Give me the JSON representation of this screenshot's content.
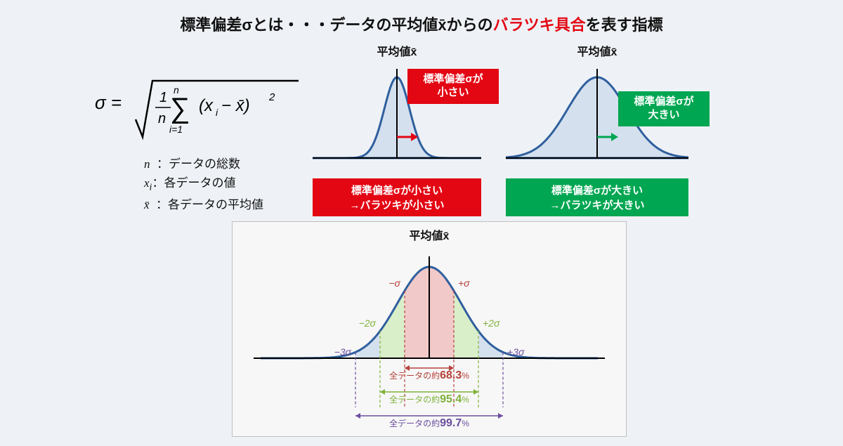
{
  "title_pre": "標準偏差σとは・・・データの平均値x̄からの",
  "title_red": "バラツキ具合",
  "title_post": "を表す指標",
  "formula": {
    "sigma_eq": "σ =",
    "frac_top": "1",
    "frac_bot": "n",
    "sum_top": "n",
    "sum_bot": "i=1",
    "termL": "(x",
    "term_sub": "i",
    "termR": " − x̄)",
    "exp": "2"
  },
  "legend": {
    "n": "n",
    "n_txt": "：データの総数",
    "xi": "x",
    "xi_sub": "i",
    "xi_txt": "：各データの値",
    "xbar": "x̄",
    "xbar_txt": "：各データの平均値"
  },
  "chart_small": {
    "title": "平均値x̄",
    "box_l1": "標準偏差σが",
    "box_l2": "小さい",
    "cap_l1": "標準偏差σが小さい",
    "cap_l2": "→バラツキが小さい",
    "curve_color": "#2f5f9e",
    "fill_color": "#d4e0ee",
    "axis": "#000",
    "sigma": 18
  },
  "chart_big": {
    "title": "平均値x̄",
    "box_l1": "標準偏差σが",
    "box_l2": "大きい",
    "cap_l1": "標準偏差σが大きい",
    "cap_l2": "→バラツキが大きい",
    "curve_color": "#2f5f9e",
    "fill_color": "#d4e0ee",
    "axis": "#000",
    "sigma": 42
  },
  "bottom": {
    "title": "平均値x̄",
    "curve_color": "#2f5f9e",
    "fill_blue": "#d4e0ee",
    "fill_red": "#f2c9c9",
    "fill_green": "#d9efc9",
    "sigma_labels": {
      "m1": "−σ",
      "p1": "+σ",
      "m2": "−2σ",
      "p2": "+2σ",
      "m3": "−3σ",
      "p3": "+3σ"
    },
    "range1_pre": "全データの約",
    "range1_val": "68.3",
    "range1_pct": "%",
    "range2_pre": "全データの約",
    "range2_val": "95.4",
    "range2_pct": "%",
    "range3_pre": "全データの約",
    "range3_val": "99.7",
    "range3_pct": "%",
    "c_red": "#b5413a",
    "c_green": "#7fb23a",
    "c_purple": "#6b4d9e"
  }
}
